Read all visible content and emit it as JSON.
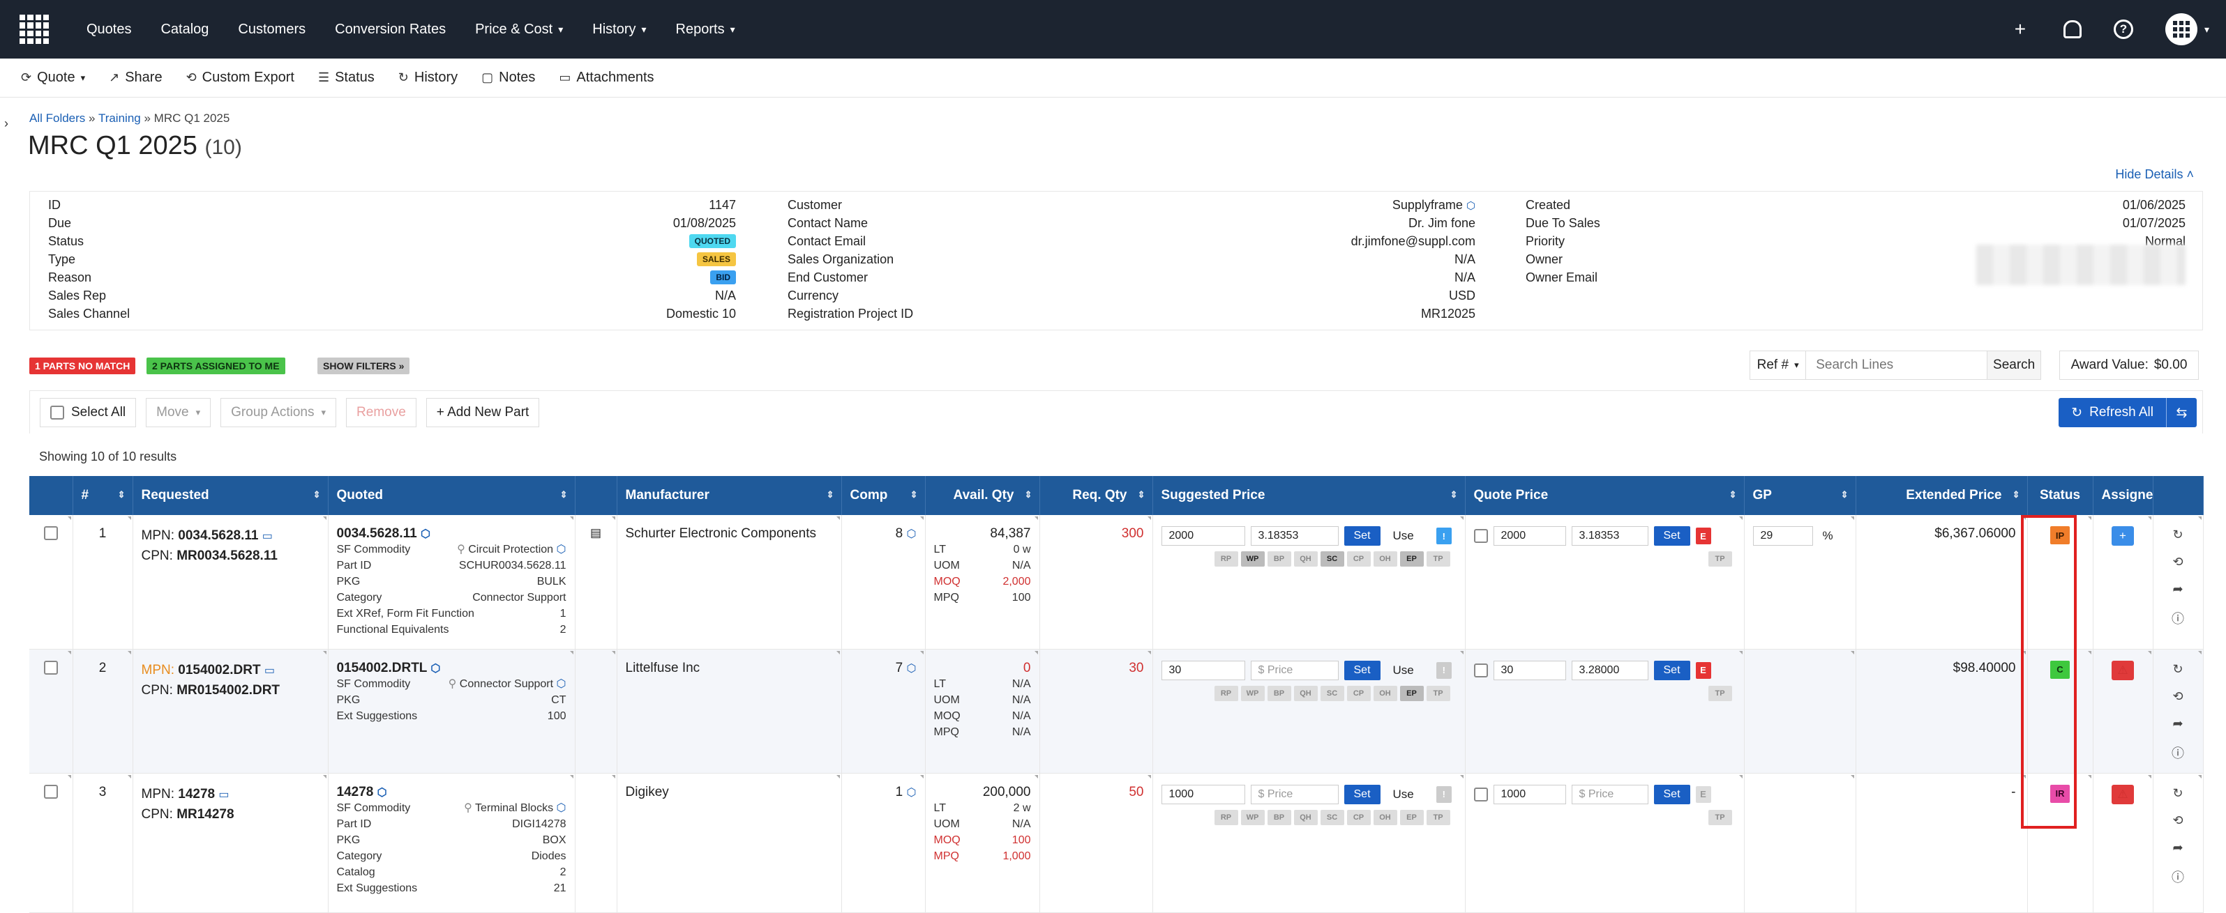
{
  "nav": {
    "items": [
      {
        "label": "Quotes",
        "dropdown": false
      },
      {
        "label": "Catalog",
        "dropdown": false
      },
      {
        "label": "Customers",
        "dropdown": false
      },
      {
        "label": "Conversion Rates",
        "dropdown": false
      },
      {
        "label": "Price & Cost",
        "dropdown": true
      },
      {
        "label": "History",
        "dropdown": true
      },
      {
        "label": "Reports",
        "dropdown": true
      }
    ],
    "plus": "+"
  },
  "toolbar": {
    "quote": "Quote",
    "share": "Share",
    "custom_export": "Custom Export",
    "status": "Status",
    "history": "History",
    "notes": "Notes",
    "attachments": "Attachments"
  },
  "breadcrumb": {
    "all_folders": "All Folders",
    "training": "Training",
    "current": "MRC Q1 2025",
    "sep": "»"
  },
  "page": {
    "title": "MRC Q1 2025",
    "count": "(10)",
    "hide_details": "Hide Details"
  },
  "details": {
    "col1": [
      {
        "k": "ID",
        "v": "1147"
      },
      {
        "k": "Due",
        "v": "01/08/2025"
      },
      {
        "k": "Status",
        "badge": "QUOTED"
      },
      {
        "k": "Type",
        "badge": "SALES"
      },
      {
        "k": "Reason",
        "badge": "BID"
      },
      {
        "k": "Sales Rep",
        "v": "N/A"
      },
      {
        "k": "Sales Channel",
        "v": "Domestic 10"
      }
    ],
    "col2": [
      {
        "k": "Customer",
        "v": "Supplyframe"
      },
      {
        "k": "Contact Name",
        "v": "Dr. Jim fone"
      },
      {
        "k": "Contact Email",
        "v": "dr.jimfone@suppl.com"
      },
      {
        "k": "Sales Organization",
        "v": "N/A"
      },
      {
        "k": "End Customer",
        "v": "N/A"
      },
      {
        "k": "Currency",
        "v": "USD"
      },
      {
        "k": "Registration Project ID",
        "v": "MR12025"
      }
    ],
    "col3": [
      {
        "k": "Created",
        "v": "01/06/2025"
      },
      {
        "k": "Due To Sales",
        "v": "01/07/2025"
      },
      {
        "k": "Priority",
        "v": "Normal"
      },
      {
        "k": "Owner",
        "v": ""
      },
      {
        "k": "Owner Email",
        "v": ""
      }
    ]
  },
  "filters": {
    "no_match": "1 PARTS NO MATCH",
    "assigned": "2 PARTS ASSIGNED TO ME",
    "show": "SHOW FILTERS »"
  },
  "search": {
    "ref": "Ref #",
    "placeholder": "Search Lines",
    "button": "Search"
  },
  "award": {
    "label": "Award Value:",
    "value": "$0.00"
  },
  "actions": {
    "select_all": "Select All",
    "move": "Move",
    "group_actions": "Group Actions",
    "remove": "Remove",
    "add_new_part": "+ Add New Part",
    "refresh_all": "Refresh All"
  },
  "showing": "Showing 10 of 10 results",
  "columns": {
    "num": "#",
    "requested": "Requested",
    "quoted": "Quoted",
    "manufacturer": "Manufacturer",
    "comp": "Comp",
    "avail": "Avail. Qty",
    "req": "Req. Qty",
    "suggested": "Suggested Price",
    "quote_price": "Quote Price",
    "gp": "GP",
    "extended": "Extended Price",
    "status": "Status",
    "assignee": "Assignee"
  },
  "rows": [
    {
      "num": "1",
      "mpn_label": "MPN:",
      "mpn": "0034.5628.11",
      "cpn_label": "CPN:",
      "cpn": "MR0034.5628.11",
      "quoted_mpn": "0034.5628.11",
      "quoted_kv": [
        {
          "k": "SF Commodity",
          "v": "Circuit Protection"
        },
        {
          "k": "Part ID",
          "v": "SCHUR0034.5628.11"
        },
        {
          "k": "PKG",
          "v": "BULK"
        },
        {
          "k": "Category",
          "v": "Connector Support"
        },
        {
          "k": "Ext XRef, Form Fit Function",
          "v": "1"
        },
        {
          "k": "Functional Equivalents",
          "v": "2"
        }
      ],
      "manufacturer": "Schurter Electronic Components",
      "comp": "8",
      "avail_top": "84,387",
      "avail_kv": [
        {
          "k": "LT",
          "v": "0 w"
        },
        {
          "k": "UOM",
          "v": "N/A"
        },
        {
          "k": "MOQ",
          "v": "2,000"
        },
        {
          "k": "MPQ",
          "v": "100"
        }
      ],
      "req": "300",
      "sug_qty": "2000",
      "sug_price": "3.18353",
      "sug_badge": "!",
      "q_qty": "2000",
      "q_price": "3.18353",
      "q_badge": "E",
      "gp": "29",
      "gp_unit": "%",
      "extended": "$6,367.06000",
      "status": "IP",
      "assignee": "+"
    },
    {
      "num": "2",
      "mpn_label": "MPN:",
      "mpn": "0154002.DRT",
      "cpn_label": "CPN:",
      "cpn": "MR0154002.DRT",
      "quoted_mpn": "0154002.DRTL",
      "quoted_kv": [
        {
          "k": "SF Commodity",
          "v": "Connector Support"
        },
        {
          "k": "PKG",
          "v": "CT"
        },
        {
          "k": "Ext Suggestions",
          "v": "100"
        }
      ],
      "manufacturer": "Littelfuse Inc",
      "comp": "7",
      "avail_top": "0",
      "avail_kv": [
        {
          "k": "LT",
          "v": "N/A"
        },
        {
          "k": "UOM",
          "v": "N/A"
        },
        {
          "k": "MOQ",
          "v": "N/A"
        },
        {
          "k": "MPQ",
          "v": "N/A"
        }
      ],
      "req": "30",
      "sug_qty": "30",
      "sug_price": "$ Price",
      "sug_badge": "!",
      "q_qty": "30",
      "q_price": "3.28000",
      "q_badge": "E",
      "gp": "",
      "gp_unit": "",
      "extended": "$98.40000",
      "status": "C",
      "assignee": "⚠"
    },
    {
      "num": "3",
      "mpn_label": "MPN:",
      "mpn": "14278",
      "cpn_label": "CPN:",
      "cpn": "MR14278",
      "quoted_mpn": "14278",
      "quoted_kv": [
        {
          "k": "SF Commodity",
          "v": "Terminal Blocks"
        },
        {
          "k": "Part ID",
          "v": "DIGI14278"
        },
        {
          "k": "PKG",
          "v": "BOX"
        },
        {
          "k": "Category",
          "v": "Diodes"
        },
        {
          "k": "Catalog",
          "v": "2"
        },
        {
          "k": "Ext Suggestions",
          "v": "21"
        }
      ],
      "manufacturer": "Digikey",
      "comp": "1",
      "avail_top": "200,000",
      "avail_kv": [
        {
          "k": "LT",
          "v": "2 w"
        },
        {
          "k": "UOM",
          "v": "N/A"
        },
        {
          "k": "MOQ",
          "v": "100"
        },
        {
          "k": "MPQ",
          "v": "1,000"
        }
      ],
      "req": "50",
      "sug_qty": "1000",
      "sug_price": "$ Price",
      "sug_badge": "!",
      "q_qty": "1000",
      "q_price": "$ Price",
      "q_badge": "E",
      "gp": "",
      "gp_unit": "",
      "extended": "-",
      "status": "IR",
      "assignee": "⚠"
    }
  ],
  "price_tags": [
    "RP",
    "WP",
    "BP",
    "QH",
    "SC",
    "CP",
    "OH",
    "EP",
    "TP"
  ],
  "q_tag": "TP",
  "set_label": "Set",
  "use_label": "Use"
}
